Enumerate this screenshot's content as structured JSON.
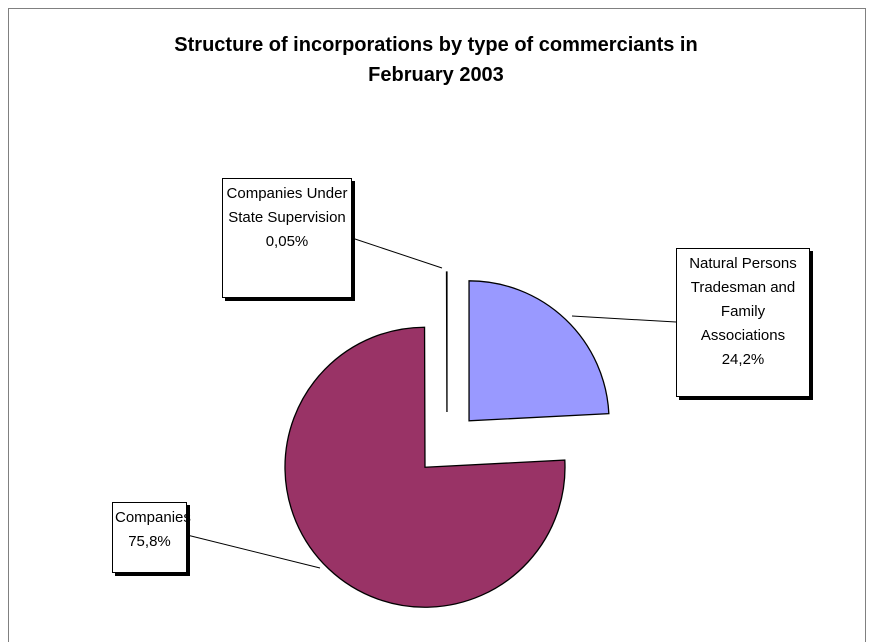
{
  "chart_data": {
    "type": "pie",
    "title": "Structure of incorporations by type of commerciants in February 2003",
    "categories": [
      "Natural Persons Tradesman and Family Associations",
      "Companies",
      "Companies Under State Supervision"
    ],
    "values": [
      24.2,
      75.8,
      0.05
    ],
    "value_labels": [
      "24,2%",
      "75,8%",
      "0,05%"
    ],
    "colors": [
      "#9999ff",
      "#993366",
      "#ffffff"
    ]
  }
}
